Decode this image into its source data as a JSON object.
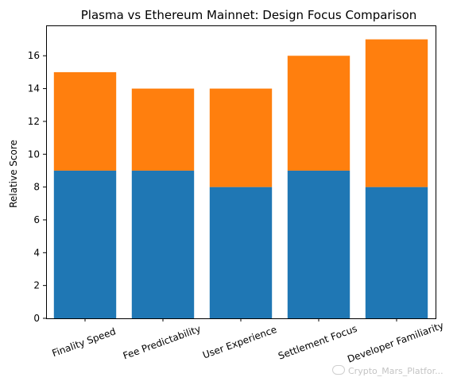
{
  "chart_data": {
    "type": "bar",
    "stacked": true,
    "title": "Plasma vs Ethereum Mainnet: Design Focus Comparison",
    "xlabel": "",
    "ylabel": "Relative Score",
    "categories": [
      "Finality Speed",
      "Fee Predictability",
      "User Experience",
      "Settlement Focus",
      "Developer Familiarity"
    ],
    "series": [
      {
        "values": [
          9,
          9,
          8,
          9,
          8
        ],
        "color": "#1f77b4"
      },
      {
        "values": [
          6,
          5,
          6,
          7,
          9
        ],
        "color": "#ff7f0e"
      }
    ],
    "ylim": [
      0,
      17.85
    ],
    "yticks": [
      0,
      2,
      4,
      6,
      8,
      10,
      12,
      14,
      16
    ],
    "grid": false,
    "xtick_rotation": 20
  },
  "watermark": {
    "text": "Crypto_Mars_Platfor...",
    "icon": "chat-bubble-icon"
  }
}
